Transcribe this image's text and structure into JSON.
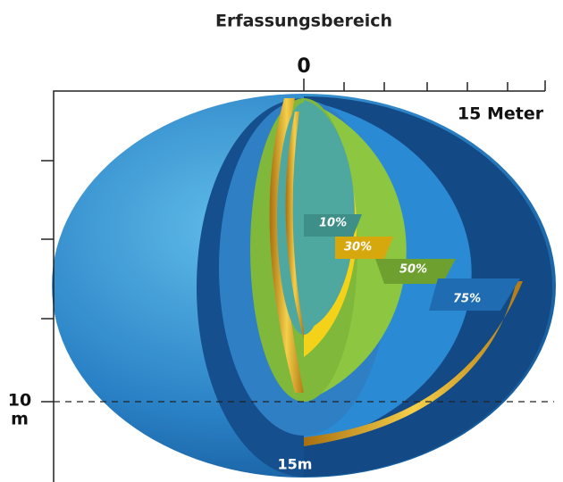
{
  "title": "Erfassungsbereich",
  "axis": {
    "origin": "0",
    "x_label": "15 Meter",
    "y_value": "10",
    "y_unit": "m"
  },
  "zones": [
    {
      "label": "10%"
    },
    {
      "label": "30%"
    },
    {
      "label": "50%"
    },
    {
      "label": "75%"
    }
  ],
  "range_label": "15m"
}
